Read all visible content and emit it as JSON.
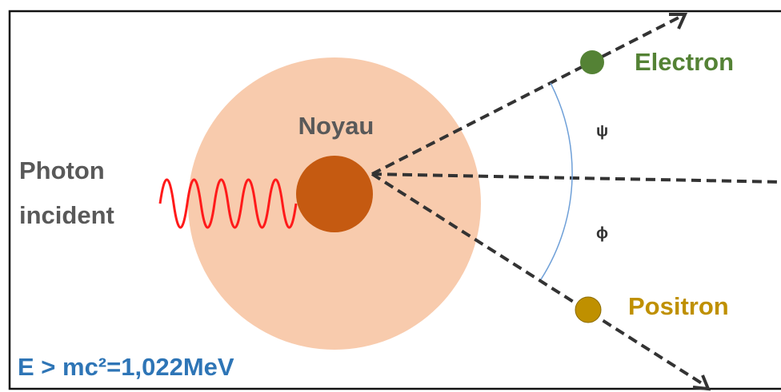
{
  "photon_label": [
    "Photon",
    "incident"
  ],
  "nucleus_label": "Noyau",
  "electron_label": "Electron",
  "positron_label": "Positron",
  "angle_psi": "ψ",
  "angle_phi": "ϕ",
  "energy_condition": "E > mc²=1,022MeV"
}
